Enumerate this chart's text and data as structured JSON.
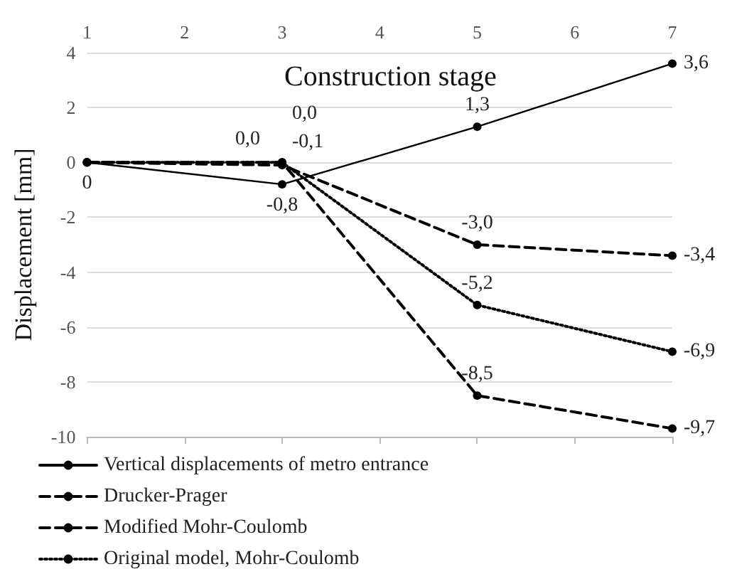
{
  "chart_data": {
    "type": "line",
    "xlabel": "Construction stage",
    "ylabel": "Displacement [mm]",
    "x": [
      1,
      3,
      5,
      7
    ],
    "xlim": [
      1,
      7
    ],
    "xticks": [
      1,
      2,
      3,
      4,
      5,
      6,
      7
    ],
    "ylim": [
      -10,
      4
    ],
    "yticks": [
      -10,
      -8,
      -6,
      -4,
      -2,
      0,
      2,
      4
    ],
    "grid": "y",
    "legend": "bottom",
    "marker": "circle",
    "series": [
      {
        "name": "Vertical displacements of metro entrance",
        "color": "#000000",
        "line_style": "solid",
        "values": [
          0,
          -0.8,
          1.3,
          3.6
        ],
        "value_labels": [
          "0",
          "-0,8",
          "1,3",
          "3,6"
        ]
      },
      {
        "name": "Drucker-Prager",
        "color": "#000000",
        "line_style": "dashed",
        "values": [
          0,
          0.0,
          -8.5,
          -9.7
        ],
        "value_labels": [
          null,
          "0,0",
          "-8,5",
          "-9,7"
        ]
      },
      {
        "name": "Modified Mohr-Coulomb",
        "color": "#000000",
        "line_style": "dashed",
        "values": [
          0,
          -0.1,
          -3.0,
          -3.4
        ],
        "value_labels": [
          null,
          "-0,1",
          "-3,0",
          "-3,4"
        ]
      },
      {
        "name": "Original model, Mohr-Coulomb",
        "color": "#000000",
        "line_style": "dotted",
        "values": [
          0,
          0.0,
          -5.2,
          -6.9
        ],
        "value_labels": [
          null,
          "0,0",
          "-5,2",
          "-6,9"
        ]
      }
    ]
  }
}
